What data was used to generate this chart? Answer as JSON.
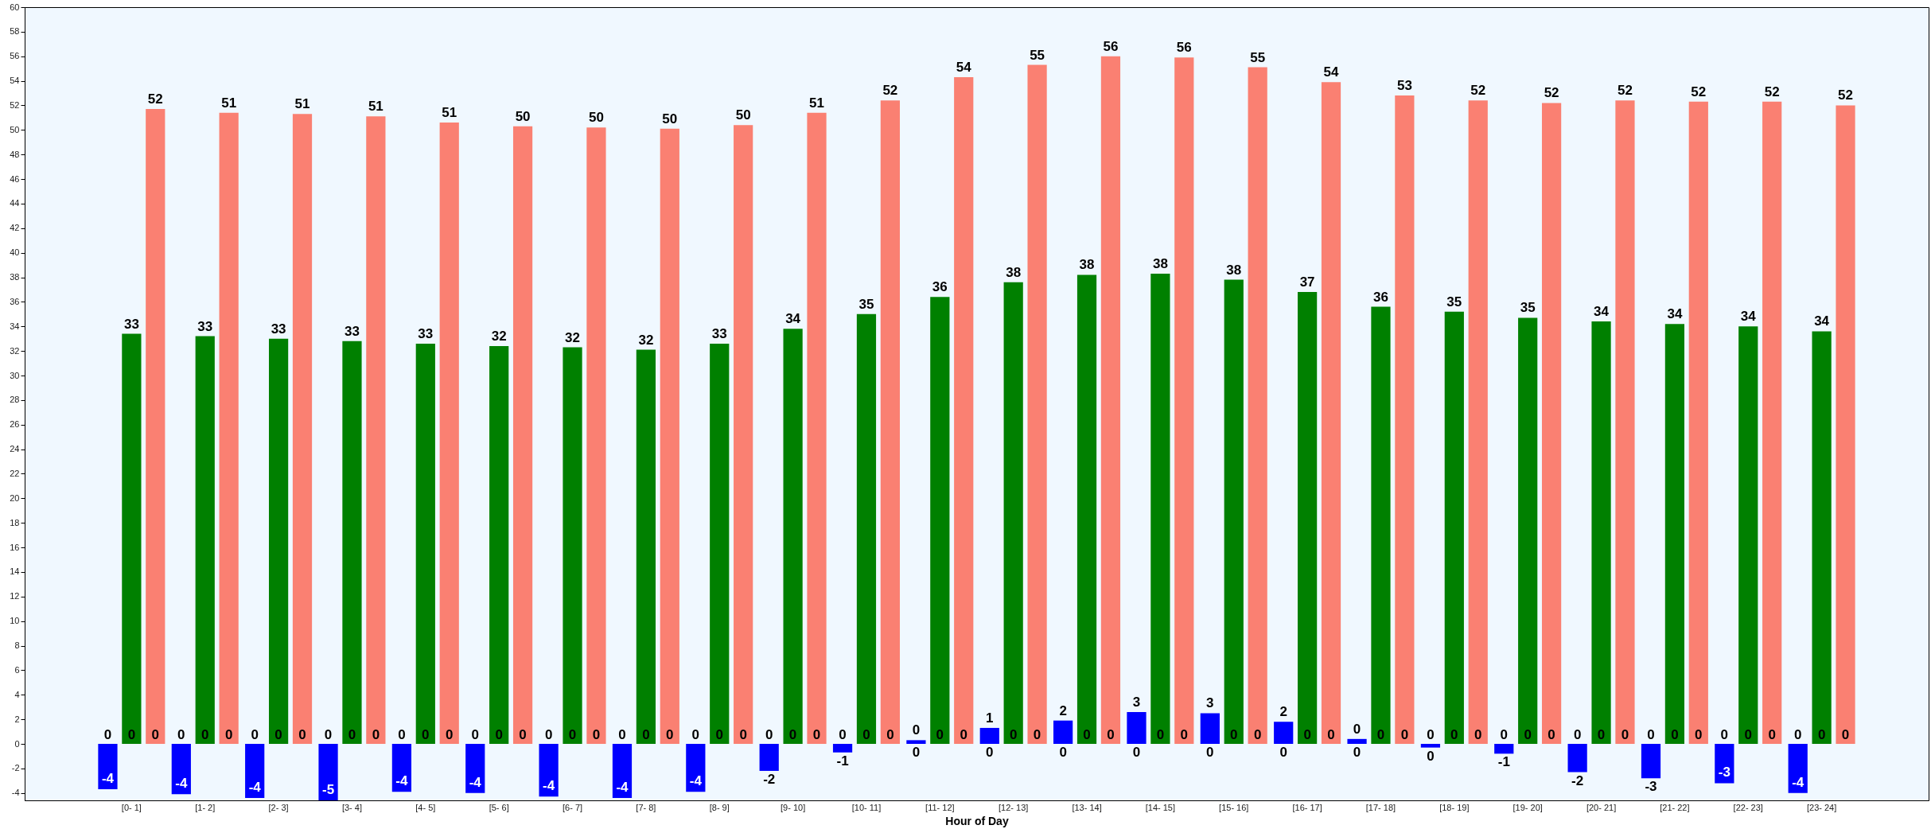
{
  "chart_data": {
    "type": "bar",
    "xlabel": "Hour of Day",
    "categories": [
      "[0- 1]",
      "[1- 2]",
      "[2- 3]",
      "[3- 4]",
      "[4- 5]",
      "[5- 6]",
      "[6- 7]",
      "[7- 8]",
      "[8- 9]",
      "[9- 10]",
      "[10- 11]",
      "[11- 12]",
      "[12- 13]",
      "[13- 14]",
      "[14- 15]",
      "[15- 16]",
      "[16- 17]",
      "[17- 18]",
      "[18- 19]",
      "[19- 20]",
      "[20- 21]",
      "[21- 22]",
      "[22- 23]",
      "[23- 24]"
    ],
    "series": [
      {
        "color": "#0000ff",
        "values": [
          -3.7,
          -4.1,
          -4.4,
          -4.6,
          -3.9,
          -4.0,
          -4.3,
          -4.4,
          -3.9,
          -2.2,
          -0.7,
          0.3,
          1.3,
          1.9,
          2.6,
          2.5,
          1.8,
          0.4,
          -0.3,
          -0.8,
          -2.3,
          -2.8,
          -3.2,
          -4.0
        ],
        "value_labels": [
          "-4",
          "-4",
          "-4",
          "-5",
          "-4",
          "-4",
          "-4",
          "-4",
          "-4",
          "-2",
          "-1",
          "0",
          "1",
          "2",
          "3",
          "3",
          "2",
          "0",
          "0",
          "-1",
          "-2",
          "-3",
          "-3",
          "-4"
        ]
      },
      {
        "color": "#008000",
        "values": [
          33.4,
          33.2,
          33.0,
          32.8,
          32.6,
          32.4,
          32.3,
          32.1,
          32.6,
          33.8,
          35.0,
          36.4,
          37.6,
          38.2,
          38.3,
          37.8,
          36.8,
          35.6,
          35.2,
          34.7,
          34.4,
          34.2,
          34.0,
          33.6
        ],
        "value_labels": [
          "33",
          "33",
          "33",
          "33",
          "33",
          "32",
          "32",
          "32",
          "33",
          "34",
          "35",
          "36",
          "38",
          "38",
          "38",
          "38",
          "37",
          "36",
          "35",
          "35",
          "34",
          "34",
          "34",
          "34"
        ]
      },
      {
        "color": "#fa8072",
        "values": [
          51.7,
          51.4,
          51.3,
          51.1,
          50.6,
          50.3,
          50.2,
          50.1,
          50.4,
          51.4,
          52.4,
          54.3,
          55.3,
          56.0,
          55.9,
          55.1,
          53.9,
          52.8,
          52.4,
          52.2,
          52.4,
          52.3,
          52.3,
          52.0
        ],
        "value_labels": [
          "52",
          "51",
          "51",
          "51",
          "51",
          "50",
          "50",
          "50",
          "50",
          "51",
          "52",
          "54",
          "55",
          "56",
          "56",
          "55",
          "54",
          "53",
          "52",
          "52",
          "52",
          "52",
          "52",
          "52"
        ]
      }
    ],
    "ylim": [
      -4.6,
      60
    ],
    "yticks": [
      -4,
      -2,
      0,
      2,
      4,
      6,
      8,
      10,
      12,
      14,
      16,
      18,
      20,
      22,
      24,
      26,
      28,
      30,
      32,
      34,
      36,
      38,
      40,
      42,
      44,
      46,
      48,
      50,
      52,
      54,
      56,
      58,
      60
    ],
    "annotations": [
      {
        "text": "0",
        "x": "[0- 1]",
        "y": 0
      },
      {
        "text": "0",
        "x": "[0- 1]",
        "y": 0
      },
      {
        "text": "0",
        "x": "[0- 1]",
        "y": 0
      },
      {
        "text": "0",
        "x": "[1- 2]",
        "y": 0
      },
      {
        "text": "0",
        "x": "[1- 2]",
        "y": 0
      },
      {
        "text": "0",
        "x": "[1- 2]",
        "y": 0
      },
      {
        "text": "0",
        "x": "[2- 3]",
        "y": 0
      },
      {
        "text": "0",
        "x": "[2- 3]",
        "y": 0
      },
      {
        "text": "0",
        "x": "[2- 3]",
        "y": 0
      },
      {
        "text": "0",
        "x": "[3- 4]",
        "y": 0
      },
      {
        "text": "0",
        "x": "[3- 4]",
        "y": 0
      },
      {
        "text": "0",
        "x": "[3- 4]",
        "y": 0
      },
      {
        "text": "0",
        "x": "[4- 5]",
        "y": 0
      },
      {
        "text": "0",
        "x": "[4- 5]",
        "y": 0
      },
      {
        "text": "0",
        "x": "[4- 5]",
        "y": 0
      },
      {
        "text": "0",
        "x": "[5- 6]",
        "y": 0
      },
      {
        "text": "0",
        "x": "[5- 6]",
        "y": 0
      },
      {
        "text": "0",
        "x": "[5- 6]",
        "y": 0
      },
      {
        "text": "0",
        "x": "[6- 7]",
        "y": 0
      },
      {
        "text": "0",
        "x": "[6- 7]",
        "y": 0
      },
      {
        "text": "0",
        "x": "[6- 7]",
        "y": 0
      },
      {
        "text": "0",
        "x": "[7- 8]",
        "y": 0
      },
      {
        "text": "0",
        "x": "[7- 8]",
        "y": 0
      },
      {
        "text": "0",
        "x": "[7- 8]",
        "y": 0
      },
      {
        "text": "0",
        "x": "[8- 9]",
        "y": 0
      },
      {
        "text": "0",
        "x": "[8- 9]",
        "y": 0
      },
      {
        "text": "0",
        "x": "[8- 9]",
        "y": 0
      },
      {
        "text": "0",
        "x": "[9- 10]",
        "y": 0
      },
      {
        "text": "0",
        "x": "[9- 10]",
        "y": 0
      },
      {
        "text": "0",
        "x": "[9- 10]",
        "y": 0
      },
      {
        "text": "0",
        "x": "[10- 11]",
        "y": 0
      },
      {
        "text": "0",
        "x": "[10- 11]",
        "y": 0
      },
      {
        "text": "0",
        "x": "[10- 11]",
        "y": 0
      },
      {
        "text": "0",
        "x": "[11- 12]",
        "y": 0
      },
      {
        "text": "0",
        "x": "[11- 12]",
        "y": 0
      },
      {
        "text": "0",
        "x": "[11- 12]",
        "y": 0
      },
      {
        "text": "0",
        "x": "[12- 13]",
        "y": 0
      },
      {
        "text": "0",
        "x": "[12- 13]",
        "y": 0
      },
      {
        "text": "0",
        "x": "[12- 13]",
        "y": 0
      },
      {
        "text": "0",
        "x": "[13- 14]",
        "y": 0
      },
      {
        "text": "0",
        "x": "[13- 14]",
        "y": 0
      },
      {
        "text": "0",
        "x": "[13- 14]",
        "y": 0
      },
      {
        "text": "0",
        "x": "[14- 15]",
        "y": 0
      },
      {
        "text": "0",
        "x": "[14- 15]",
        "y": 0
      },
      {
        "text": "0",
        "x": "[14- 15]",
        "y": 0
      },
      {
        "text": "0",
        "x": "[15- 16]",
        "y": 0
      },
      {
        "text": "0",
        "x": "[15- 16]",
        "y": 0
      },
      {
        "text": "0",
        "x": "[15- 16]",
        "y": 0
      },
      {
        "text": "0",
        "x": "[16- 17]",
        "y": 0
      },
      {
        "text": "0",
        "x": "[16- 17]",
        "y": 0
      },
      {
        "text": "0",
        "x": "[16- 17]",
        "y": 0
      },
      {
        "text": "0",
        "x": "[17- 18]",
        "y": 0
      },
      {
        "text": "0",
        "x": "[17- 18]",
        "y": 0
      },
      {
        "text": "0",
        "x": "[17- 18]",
        "y": 0
      },
      {
        "text": "0",
        "x": "[18- 19]",
        "y": 0
      },
      {
        "text": "0",
        "x": "[18- 19]",
        "y": 0
      },
      {
        "text": "0",
        "x": "[18- 19]",
        "y": 0
      },
      {
        "text": "0",
        "x": "[19- 20]",
        "y": 0
      },
      {
        "text": "0",
        "x": "[19- 20]",
        "y": 0
      },
      {
        "text": "0",
        "x": "[19- 20]",
        "y": 0
      },
      {
        "text": "0",
        "x": "[20- 21]",
        "y": 0
      },
      {
        "text": "0",
        "x": "[20- 21]",
        "y": 0
      },
      {
        "text": "0",
        "x": "[20- 21]",
        "y": 0
      },
      {
        "text": "0",
        "x": "[21- 22]",
        "y": 0
      },
      {
        "text": "0",
        "x": "[21- 22]",
        "y": 0
      },
      {
        "text": "0",
        "x": "[21- 22]",
        "y": 0
      },
      {
        "text": "0",
        "x": "[22- 23]",
        "y": 0
      },
      {
        "text": "0",
        "x": "[22- 23]",
        "y": 0
      },
      {
        "text": "0",
        "x": "[22- 23]",
        "y": 0
      },
      {
        "text": "0",
        "x": "[23- 24]",
        "y": 0
      },
      {
        "text": "0",
        "x": "[23- 24]",
        "y": 0
      },
      {
        "text": "0",
        "x": "[23- 24]",
        "y": 0
      }
    ]
  }
}
